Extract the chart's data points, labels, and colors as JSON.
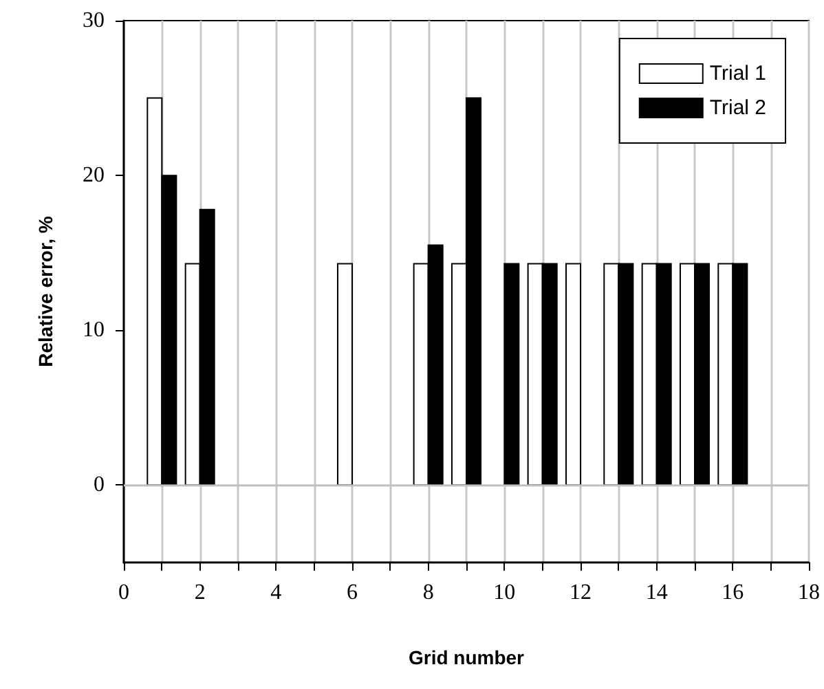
{
  "chart_data": {
    "type": "bar",
    "xlabel": "Grid number",
    "ylabel": "Relative error, %",
    "x": [
      1,
      2,
      3,
      4,
      5,
      6,
      7,
      8,
      9,
      10,
      11,
      12,
      13,
      14,
      15,
      16
    ],
    "series": [
      {
        "name": "Trial 1",
        "color": "#ffffff",
        "values": [
          25,
          14.3,
          null,
          null,
          null,
          14.3,
          null,
          14.3,
          14.3,
          null,
          14.3,
          14.3,
          14.3,
          14.3,
          14.3,
          14.3
        ]
      },
      {
        "name": "Trial 2",
        "color": "#000000",
        "values": [
          20,
          17.8,
          null,
          null,
          null,
          null,
          null,
          15.5,
          25,
          14.3,
          14.3,
          null,
          14.3,
          14.3,
          14.3,
          14.3
        ]
      }
    ],
    "xlim": [
      0,
      18
    ],
    "xticks": [
      0,
      {
        "value": 1,
        "label": null
      },
      2,
      {
        "value": 3,
        "label": null
      },
      4,
      {
        "value": 5,
        "label": null
      },
      6,
      {
        "value": 7,
        "label": null
      },
      8,
      {
        "value": 9,
        "label": null
      },
      10,
      {
        "value": 11,
        "label": null
      },
      12,
      {
        "value": 13,
        "label": null
      },
      14,
      {
        "value": 15,
        "label": null
      },
      16,
      {
        "value": 17,
        "label": null
      },
      18
    ],
    "ylim": [
      -5,
      30
    ],
    "yticks": [
      0,
      10,
      20,
      30
    ],
    "ref_lines": [
      {
        "axis": "y",
        "value": 0,
        "color": "#c0c0c0"
      }
    ],
    "grid": "x",
    "legend": "top right"
  }
}
